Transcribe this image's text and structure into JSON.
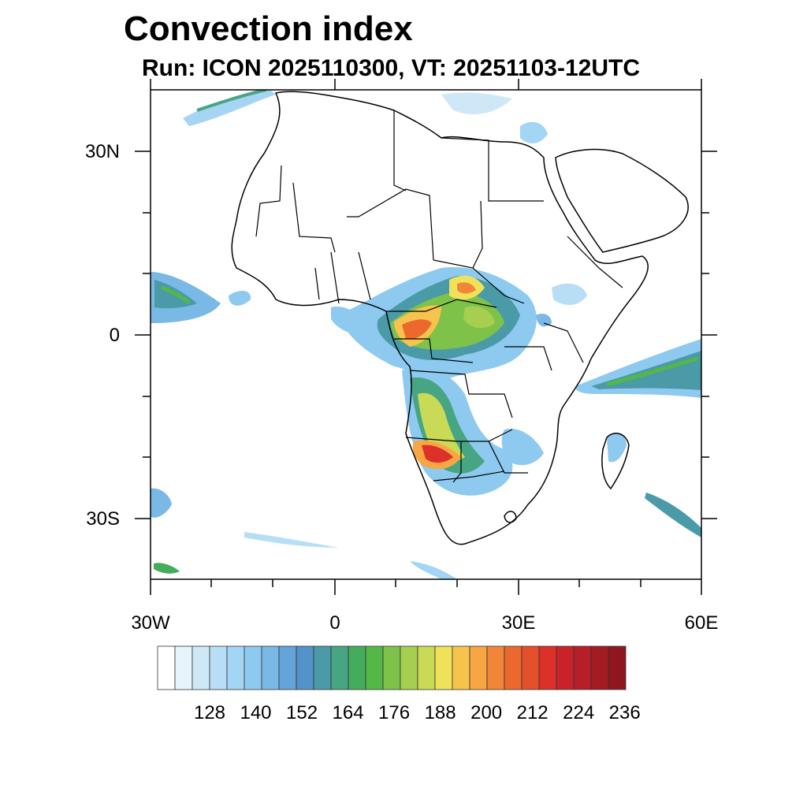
{
  "title": "Convection index",
  "subtitle": "Run: ICON 2025110300,  VT: 20251103-12UTC",
  "map": {
    "lon_range": [
      -30,
      60
    ],
    "lat_range": [
      -40,
      40
    ],
    "lat_ticks": [
      {
        "value": 30,
        "label": "30N"
      },
      {
        "value": 0,
        "label": "0"
      },
      {
        "value": -30,
        "label": "30S"
      }
    ],
    "lon_ticks": [
      {
        "value": -30,
        "label": "30W"
      },
      {
        "value": 0,
        "label": "0"
      },
      {
        "value": 30,
        "label": "30E"
      },
      {
        "value": 60,
        "label": "60E"
      }
    ]
  },
  "colorbar": {
    "labels": [
      "128",
      "140",
      "152",
      "164",
      "176",
      "188",
      "200",
      "212",
      "224",
      "236"
    ],
    "colors": [
      "#ffffff",
      "#e8f4fc",
      "#cfe8f8",
      "#b8def6",
      "#a2d6f4",
      "#8ecaef",
      "#7ab8e6",
      "#63a4da",
      "#5293c9",
      "#4a9aa8",
      "#47a583",
      "#45ac5e",
      "#53b848",
      "#7fc24a",
      "#a6cf50",
      "#c9da56",
      "#efe25a",
      "#f6c44e",
      "#f7a643",
      "#f28638",
      "#ec692e",
      "#e44f2c",
      "#dc3129",
      "#c8232a",
      "#b61f28",
      "#a31b23",
      "#8e161e"
    ]
  }
}
